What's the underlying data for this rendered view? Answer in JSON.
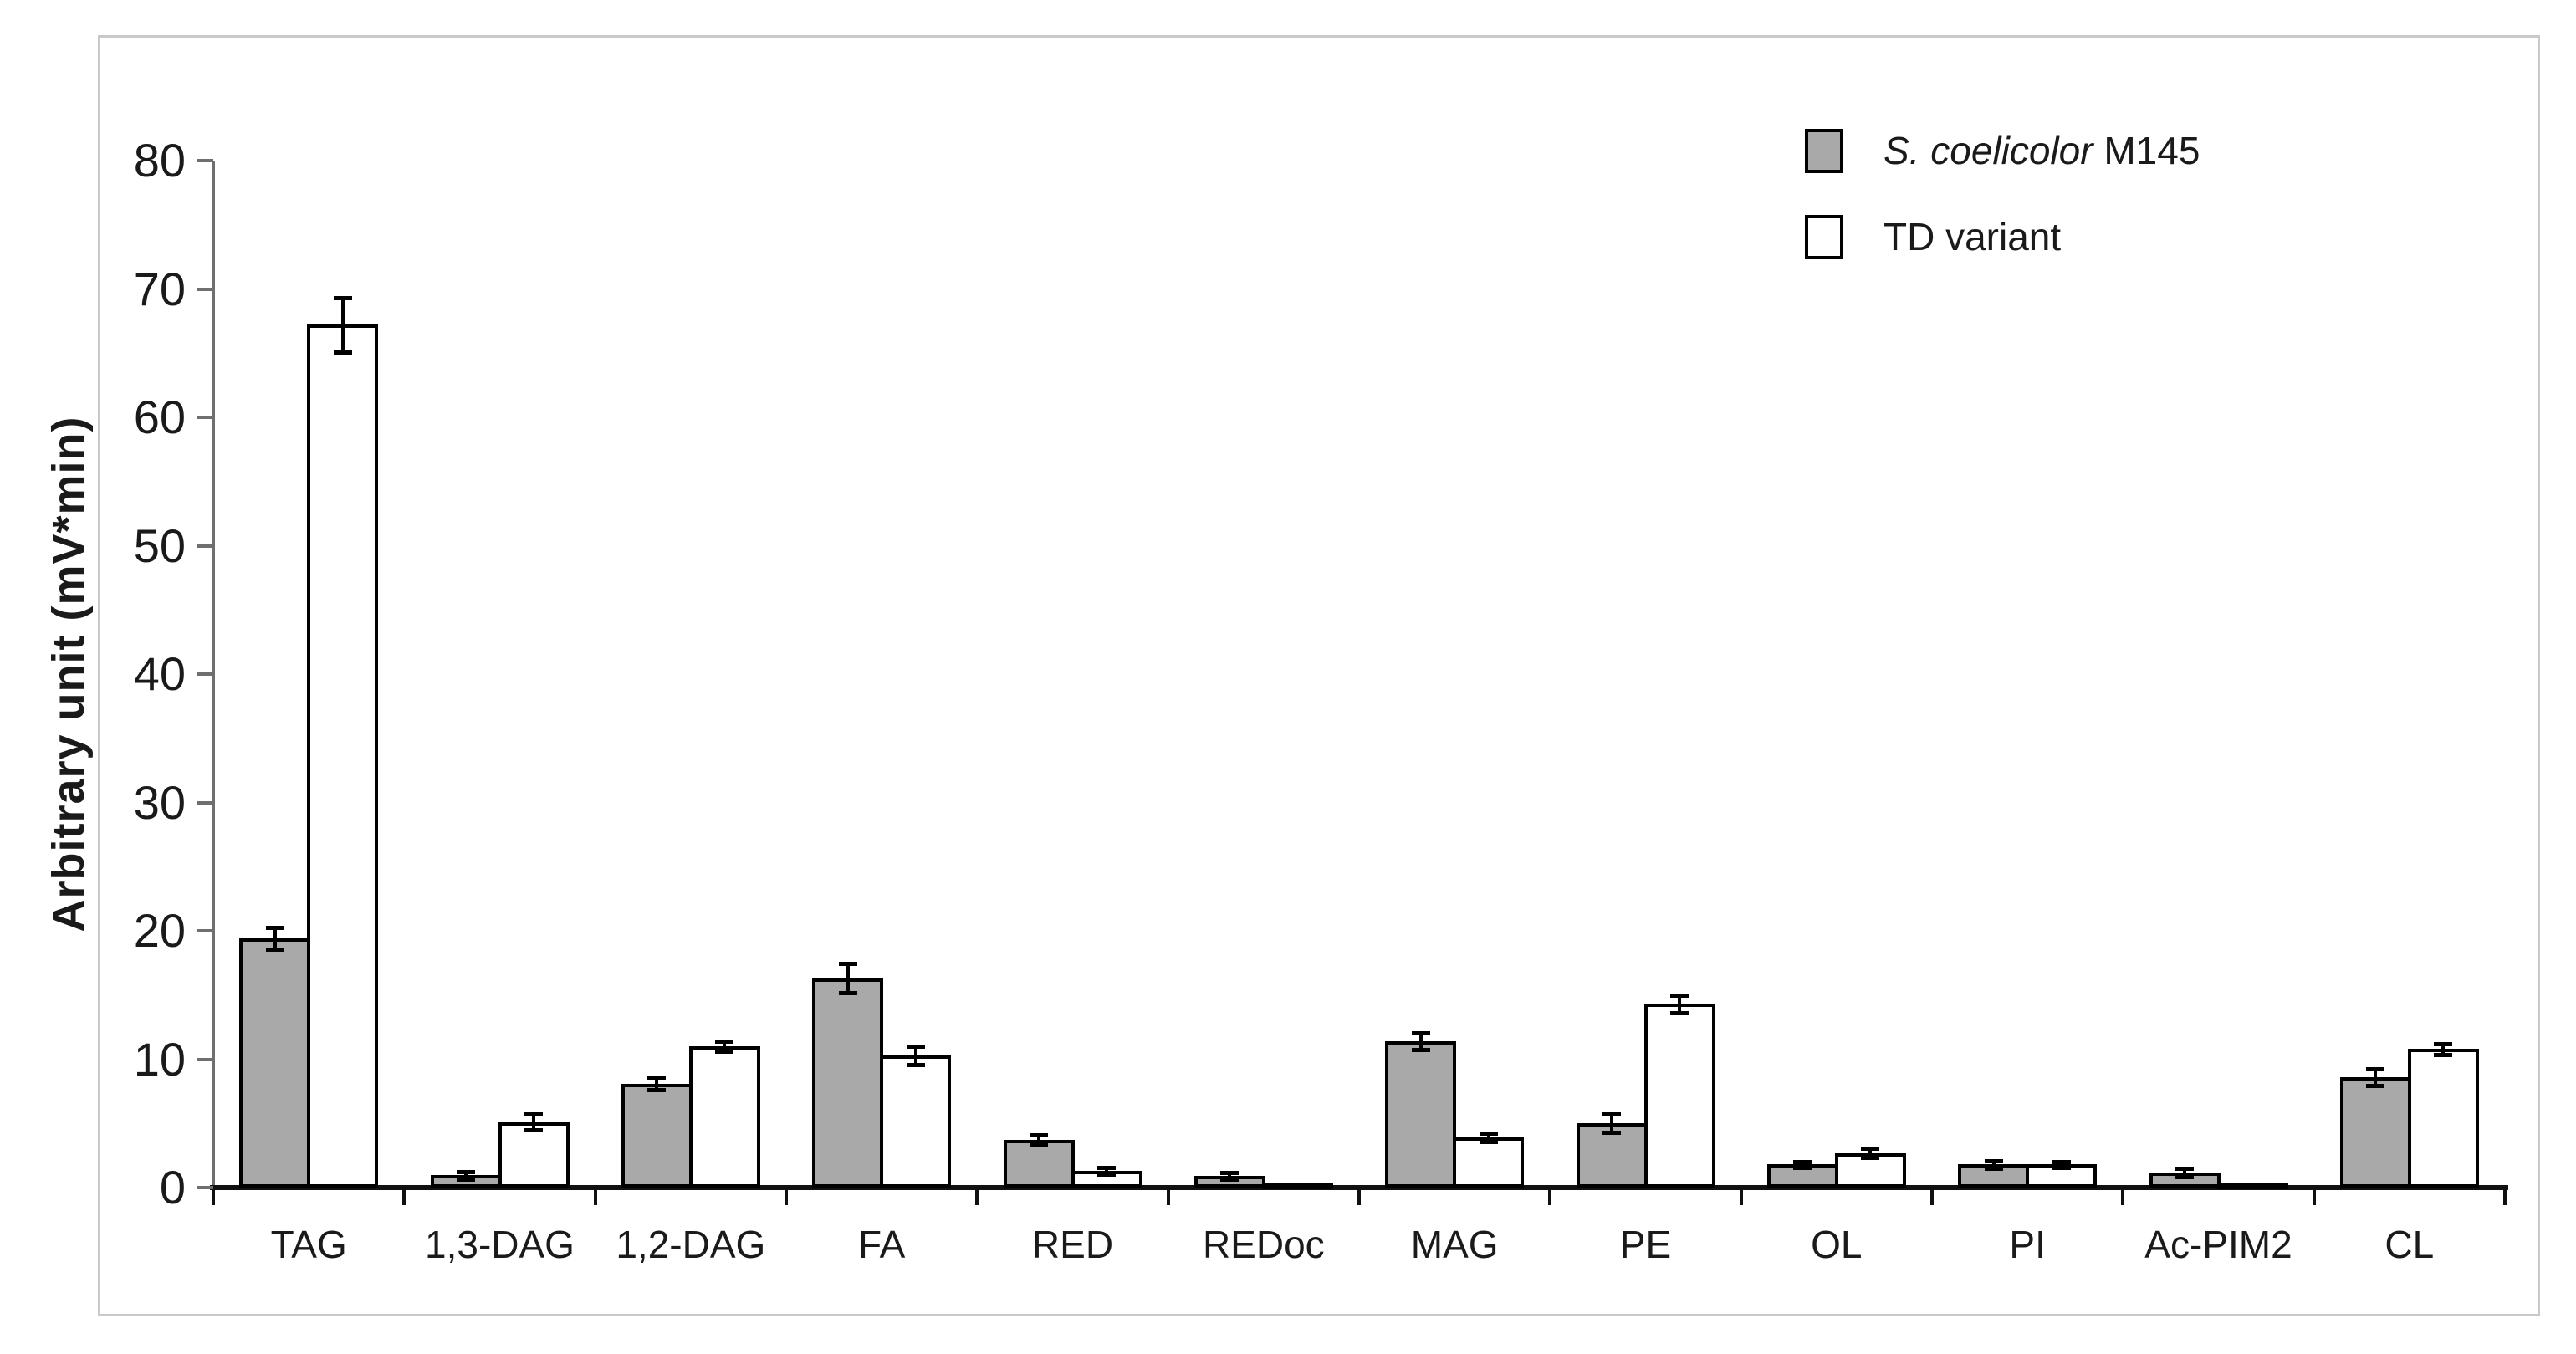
{
  "figure": {
    "background": "#ffffff",
    "frame_color": "#c9c9c9",
    "axis_color": "#6f6f6f",
    "baseline_color": "#111111",
    "text_color": "#1a1a1a"
  },
  "chart_data": {
    "type": "bar",
    "title": "",
    "xlabel": "",
    "ylabel": "Arbitrary unit (mV*min)",
    "ylim": [
      0,
      80
    ],
    "yticks": [
      0,
      10,
      20,
      30,
      40,
      50,
      60,
      70,
      80
    ],
    "grid": false,
    "legend_position": "top-right-inside",
    "categories": [
      "TAG",
      "1,3-DAG",
      "1,2-DAG",
      "FA",
      "RED",
      "REDoc",
      "MAG",
      "PE",
      "OL",
      "PI",
      "Ac-PIM2",
      "CL"
    ],
    "series": [
      {
        "name": "S. coelicolor M145",
        "name_italic_part": "S. coelicolor",
        "name_regular_part": " M145",
        "fill": "#a9a9a9",
        "values": [
          19.4,
          0.95,
          8.1,
          16.3,
          3.7,
          0.9,
          11.4,
          5.0,
          1.8,
          1.8,
          1.2,
          8.6
        ],
        "errors": [
          0.7,
          0.15,
          0.35,
          1.0,
          0.25,
          0.12,
          0.5,
          0.6,
          0.12,
          0.18,
          0.2,
          0.5
        ]
      },
      {
        "name": "TD variant",
        "name_italic_part": "",
        "name_regular_part": "TD variant",
        "fill": "#ffffff",
        "values": [
          67.2,
          5.1,
          11.0,
          10.3,
          1.3,
          0.15,
          3.9,
          14.3,
          2.7,
          1.8,
          0.2,
          10.8
        ],
        "errors": [
          2.0,
          0.5,
          0.25,
          0.6,
          0.15,
          0,
          0.2,
          0.55,
          0.2,
          0.12,
          0,
          0.3
        ]
      }
    ]
  }
}
